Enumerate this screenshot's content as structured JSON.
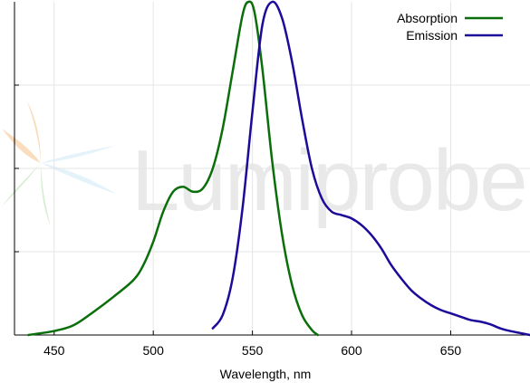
{
  "chart_data": {
    "type": "line",
    "xlabel": "Wavelength, nm",
    "ylabel": "",
    "xlim": [
      430,
      690
    ],
    "ylim": [
      0,
      1.0
    ],
    "x_ticks": [
      450,
      500,
      550,
      600,
      650
    ],
    "y_gridlines": [
      0.25,
      0.5,
      0.75
    ],
    "grid": true,
    "legend_position": "top-right",
    "watermark": {
      "text": "Lumiprobe",
      "logo_colors": [
        "#f5c28a",
        "#b9e0f5",
        "#a8d9a0"
      ]
    },
    "series": [
      {
        "name": "Absorption",
        "color": "#0a6e0a",
        "points": [
          [
            437,
            0.0
          ],
          [
            450,
            0.012
          ],
          [
            460,
            0.03
          ],
          [
            470,
            0.07
          ],
          [
            480,
            0.115
          ],
          [
            490,
            0.165
          ],
          [
            495,
            0.21
          ],
          [
            500,
            0.28
          ],
          [
            505,
            0.37
          ],
          [
            510,
            0.43
          ],
          [
            515,
            0.445
          ],
          [
            520,
            0.43
          ],
          [
            525,
            0.44
          ],
          [
            530,
            0.5
          ],
          [
            535,
            0.62
          ],
          [
            540,
            0.79
          ],
          [
            545,
            0.96
          ],
          [
            548,
            1.0
          ],
          [
            551,
            0.97
          ],
          [
            555,
            0.8
          ],
          [
            560,
            0.52
          ],
          [
            565,
            0.3
          ],
          [
            570,
            0.15
          ],
          [
            575,
            0.06
          ],
          [
            580,
            0.015
          ],
          [
            583,
            0.0
          ]
        ]
      },
      {
        "name": "Emission",
        "color": "#1c0a9a",
        "points": [
          [
            530,
            0.02
          ],
          [
            535,
            0.06
          ],
          [
            540,
            0.17
          ],
          [
            545,
            0.38
          ],
          [
            550,
            0.67
          ],
          [
            555,
            0.93
          ],
          [
            560,
            1.0
          ],
          [
            565,
            0.95
          ],
          [
            570,
            0.82
          ],
          [
            575,
            0.65
          ],
          [
            580,
            0.5
          ],
          [
            585,
            0.41
          ],
          [
            590,
            0.37
          ],
          [
            595,
            0.36
          ],
          [
            600,
            0.35
          ],
          [
            605,
            0.33
          ],
          [
            610,
            0.3
          ],
          [
            615,
            0.26
          ],
          [
            620,
            0.21
          ],
          [
            625,
            0.17
          ],
          [
            630,
            0.135
          ],
          [
            635,
            0.11
          ],
          [
            640,
            0.09
          ],
          [
            645,
            0.075
          ],
          [
            650,
            0.065
          ],
          [
            655,
            0.055
          ],
          [
            660,
            0.045
          ],
          [
            665,
            0.04
          ],
          [
            670,
            0.032
          ],
          [
            675,
            0.02
          ],
          [
            680,
            0.012
          ],
          [
            685,
            0.006
          ],
          [
            690,
            0.0
          ]
        ]
      }
    ]
  }
}
